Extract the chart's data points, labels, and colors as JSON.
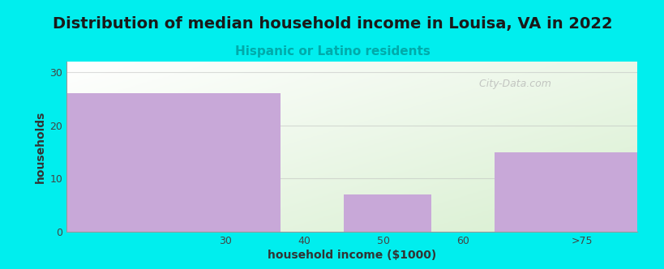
{
  "title": "Distribution of median household income in Louisa, VA in 2022",
  "subtitle": "Hispanic or Latino residents",
  "xlabel": "household income ($1000)",
  "ylabel": "households",
  "background_color": "#00EEEE",
  "bar_color": "#C8A8D8",
  "bar_edgecolor": "none",
  "bars": [
    {
      "x_left": 10,
      "x_right": 37,
      "height": 26
    },
    {
      "x_left": 45,
      "x_right": 56,
      "height": 7
    },
    {
      "x_left": 64,
      "x_right": 82,
      "height": 15
    }
  ],
  "xticks": [
    30,
    40,
    50,
    60,
    75
  ],
  "xticklabels": [
    "30",
    "40",
    "50",
    "60",
    ">75"
  ],
  "yticks": [
    0,
    10,
    20,
    30
  ],
  "xlim": [
    10,
    82
  ],
  "ylim": [
    0,
    32
  ],
  "subtitle_color": "#00AAAA",
  "title_fontsize": 14,
  "subtitle_fontsize": 11,
  "axis_label_fontsize": 10,
  "tick_fontsize": 9,
  "watermark_text": "  City-Data.com",
  "grid_color": "#bbbbbb",
  "grid_alpha": 0.5,
  "gradient_left_color": "#ffffff",
  "gradient_right_color": "#d8efd0"
}
